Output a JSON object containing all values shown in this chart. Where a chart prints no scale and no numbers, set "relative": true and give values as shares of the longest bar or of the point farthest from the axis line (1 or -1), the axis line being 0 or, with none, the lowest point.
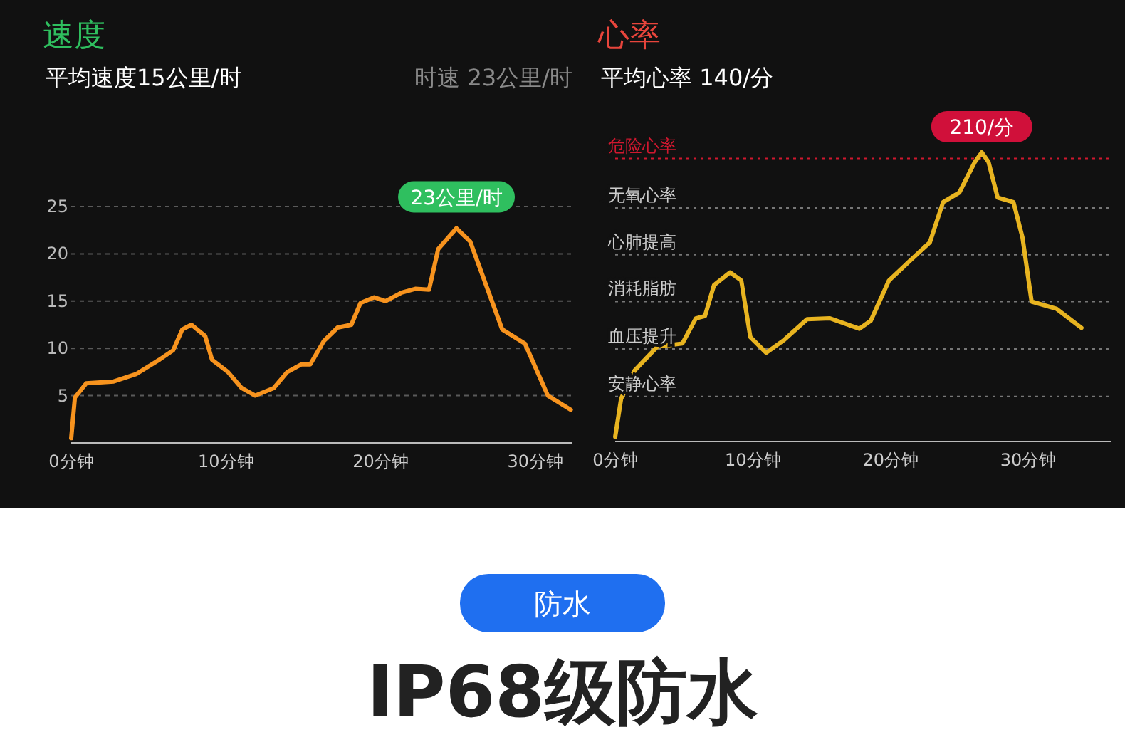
{
  "chart_data": [
    {
      "type": "line",
      "title": "速度",
      "subtitle": "平均速度15公里/时",
      "annotations": [
        "时速 23公里/时",
        {
          "text": "23公里/时",
          "x": 24.9,
          "y": 22.7
        }
      ],
      "grid": "y",
      "marker": "none",
      "line_style": "solid",
      "xlim": [
        0,
        32.4
      ],
      "xticks": [
        {
          "value": 0,
          "label": "0分钟"
        },
        {
          "value": 10,
          "label": "10分钟"
        },
        {
          "value": 20,
          "label": "20分钟"
        },
        {
          "value": 30,
          "label": "30分钟"
        }
      ],
      "ylim": [
        0,
        25
      ],
      "yticks": [
        5,
        10,
        15,
        20,
        25
      ],
      "series": [
        {
          "color": "#f7931e",
          "x": [
            0,
            0.24,
            0.97,
            2.75,
            4.22,
            5.7,
            6.59,
            7.18,
            7.77,
            8.66,
            9.1,
            10.13,
            11.02,
            11.9,
            13.09,
            13.97,
            14.86,
            15.45,
            16.34,
            17.22,
            18.11,
            18.7,
            19.59,
            20.32,
            21.36,
            22.24,
            23.13,
            23.72,
            24.9,
            25.79,
            27.86,
            29.33,
            30.81,
            31.4,
            32.29
          ],
          "values": [
            0.5,
            4.8,
            6.3,
            6.5,
            7.3,
            8.8,
            9.8,
            12,
            12.5,
            11.3,
            8.8,
            7.5,
            5.8,
            5,
            5.8,
            7.5,
            8.3,
            8.3,
            10.8,
            12.2,
            12.5,
            14.8,
            15.4,
            15,
            15.9,
            16.3,
            16.2,
            20.5,
            22.7,
            21.3,
            12,
            10.5,
            5,
            4.4,
            3.5
          ]
        }
      ]
    },
    {
      "type": "line",
      "title": "心率",
      "subtitle": "平均心率 140/分",
      "relative": true,
      "annotations": [
        {
          "text": "210/分",
          "x": 26.63,
          "y": 1
        }
      ],
      "marker": "none",
      "line_style": "solid",
      "xlim": [
        0,
        36
      ],
      "xticks": [
        {
          "value": 0,
          "label": "0分钟"
        },
        {
          "value": 10,
          "label": "10分钟"
        },
        {
          "value": 20,
          "label": "20分钟"
        },
        {
          "value": 30,
          "label": "30分钟"
        }
      ],
      "ref_lines": [
        {
          "axis": "y",
          "value": 0.979,
          "label": "危险心率",
          "color": "#d0182f",
          "line_style": "dotted"
        },
        {
          "axis": "y",
          "value": 0.808,
          "label": "无氧心率",
          "color": "#777777",
          "line_style": "dotted"
        },
        {
          "axis": "y",
          "value": 0.646,
          "label": "心肺提高",
          "color": "#777777",
          "line_style": "dotted"
        },
        {
          "axis": "y",
          "value": 0.484,
          "label": "消耗脂肪",
          "color": "#777777",
          "line_style": "dotted"
        },
        {
          "axis": "y",
          "value": 0.32,
          "label": "血压提升",
          "color": "#777777",
          "line_style": "dotted"
        },
        {
          "axis": "y",
          "value": 0.156,
          "label": "安静心率",
          "color": "#777777",
          "line_style": "dotted"
        }
      ],
      "series": [
        {
          "color": "#e8b420",
          "x": [
            0,
            0.43,
            1.42,
            3.06,
            4.88,
            5.86,
            6.52,
            7.18,
            8.34,
            9.16,
            9.82,
            10.97,
            12.29,
            13.94,
            15.6,
            17.74,
            18.57,
            19.89,
            21.54,
            22.86,
            23.82,
            25.0,
            26.13,
            26.63,
            27.12,
            27.78,
            28.93,
            29.59,
            30.25,
            32.06,
            33.87
          ],
          "values": [
            0.016,
            0.148,
            0.246,
            0.328,
            0.339,
            0.426,
            0.434,
            0.541,
            0.585,
            0.557,
            0.361,
            0.307,
            0.352,
            0.423,
            0.426,
            0.39,
            0.418,
            0.557,
            0.631,
            0.689,
            0.828,
            0.861,
            0.967,
            1,
            0.967,
            0.844,
            0.828,
            0.705,
            0.484,
            0.459,
            0.393
          ]
        }
      ]
    },
    {
      "type": "other",
      "title": "IP68级防水",
      "annotations": [
        "防水"
      ]
    }
  ]
}
